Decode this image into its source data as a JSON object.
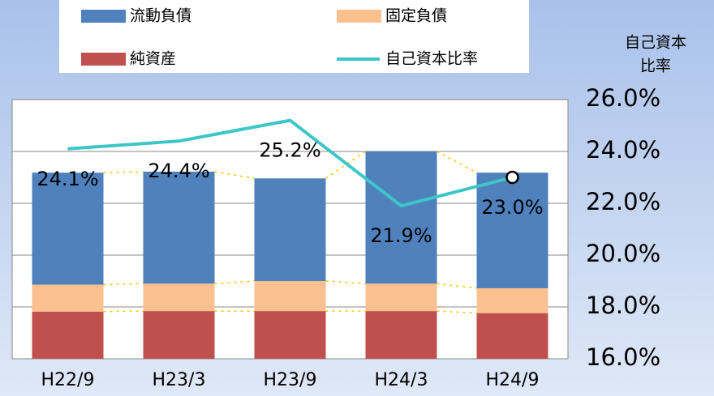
{
  "chart_data": {
    "type": "bar",
    "stacked": true,
    "categories": [
      "H22/9",
      "H23/3",
      "H23/9",
      "H24/3",
      "H24/9"
    ],
    "ylim": [
      0,
      5
    ],
    "series": [
      {
        "name": "純資産",
        "color": "#c0504d",
        "values": [
          0.91,
          0.92,
          0.92,
          0.92,
          0.88
        ]
      },
      {
        "name": "固定負債",
        "color": "#fac090",
        "values": [
          0.52,
          0.53,
          0.58,
          0.53,
          0.48
        ]
      },
      {
        "name": "流動負債",
        "color": "#4f81bd",
        "values": [
          2.16,
          2.16,
          1.98,
          2.55,
          2.23
        ]
      },
      {
        "name": "自己資本比率",
        "type": "line",
        "axis": "y2",
        "color": "#3cc6c6",
        "values": [
          24.1,
          24.4,
          25.2,
          21.9,
          23.0
        ],
        "value_labels": [
          "24.1%",
          "24.4%",
          "25.2%",
          "21.9%",
          "23.0%"
        ],
        "highlight_last": true
      }
    ],
    "y2label": [
      "自己資本",
      "比率"
    ],
    "y2lim": [
      16,
      26
    ],
    "y2ticks": [
      {
        "value": 16,
        "label": "16.0%"
      },
      {
        "value": 18,
        "label": "18.0%"
      },
      {
        "value": 20,
        "label": "20.0%"
      },
      {
        "value": 22,
        "label": "22.0%"
      },
      {
        "value": 24,
        "label": "24.0%"
      },
      {
        "value": 26,
        "label": "26.0%"
      }
    ],
    "grid": true,
    "connector_color": "#f2c500",
    "legend": [
      "流動負債",
      "固定負債",
      "純資産",
      "自己資本比率"
    ]
  }
}
